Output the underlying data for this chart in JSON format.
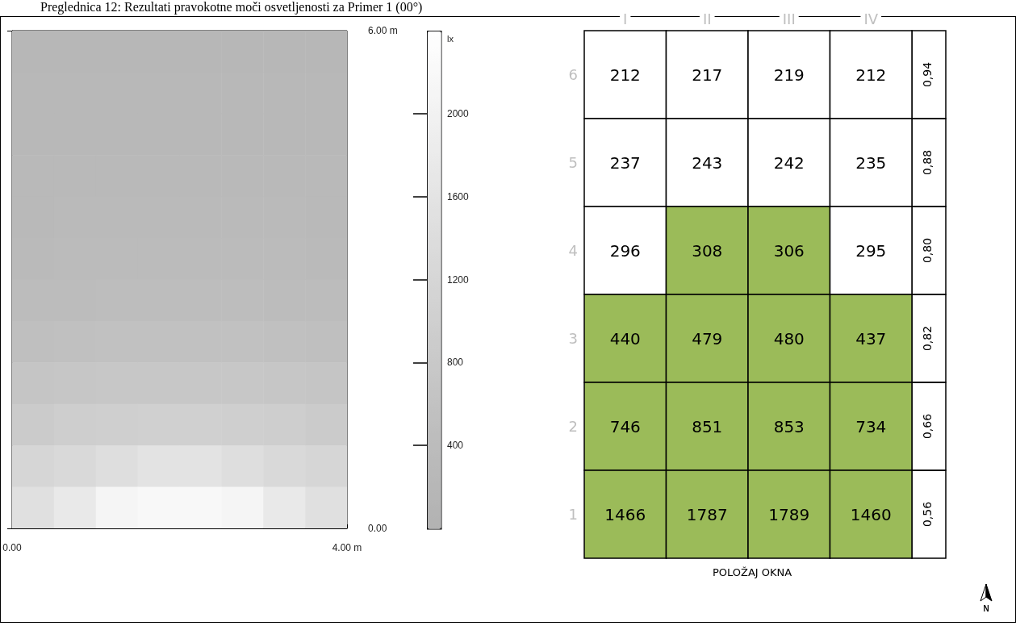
{
  "chart_data": [
    {
      "type": "heatmap",
      "title": "Preglednica 12: Rezultati pravokotne moči osvetljenosti za Primer 1 (00°)",
      "clabel": "lx",
      "xlim": [
        0,
        4
      ],
      "xticks": [
        {
          "value": 0,
          "label": "0.00"
        },
        {
          "value": 4,
          "label": "4.00 m"
        }
      ],
      "ylim": [
        0,
        6
      ],
      "yticks": [
        {
          "value": 0,
          "label": "0.00"
        },
        {
          "value": 6,
          "label": "6.00 m"
        }
      ],
      "clim": [
        0,
        2400
      ],
      "cticks": [
        400,
        800,
        1200,
        1600,
        2000
      ],
      "colors": [
        "#b2b2b2",
        "#bebebe",
        "#cecece",
        "#dedede",
        "#efefef",
        "#ffffff"
      ],
      "cells": [
        [
          205,
          210,
          212,
          214,
          214,
          212,
          210,
          205
        ],
        [
          225,
          232,
          236,
          238,
          238,
          236,
          232,
          225
        ],
        [
          245,
          252,
          256,
          258,
          258,
          256,
          252,
          245
        ],
        [
          265,
          275,
          280,
          282,
          282,
          280,
          275,
          265
        ],
        [
          290,
          305,
          310,
          312,
          312,
          310,
          305,
          290
        ],
        [
          330,
          345,
          350,
          352,
          352,
          350,
          345,
          330
        ],
        [
          390,
          410,
          420,
          425,
          425,
          420,
          410,
          390
        ],
        [
          520,
          545,
          560,
          565,
          565,
          560,
          545,
          520
        ],
        [
          700,
          730,
          750,
          760,
          760,
          750,
          730,
          700
        ],
        [
          880,
          950,
          1000,
          1020,
          1020,
          1000,
          950,
          880
        ],
        [
          1190,
          1300,
          1450,
          1580,
          1580,
          1450,
          1300,
          1190
        ],
        [
          1500,
          1750,
          2100,
          2200,
          2200,
          2100,
          1750,
          1500
        ]
      ]
    },
    {
      "type": "heatmap",
      "xlabel": "POLOŽAJ OKNA",
      "annotations": [
        "N"
      ],
      "data_labels": true,
      "categories": [
        "I",
        "II",
        "III",
        "IV"
      ],
      "y_categories": [
        "6",
        "5",
        "4",
        "3",
        "2",
        "1"
      ],
      "y2_categories": [
        "0,94",
        "0,88",
        "0,80",
        "0,82",
        "0,66",
        "0,56"
      ],
      "cells": [
        [
          212,
          217,
          219,
          212
        ],
        [
          237,
          243,
          242,
          235
        ],
        [
          296,
          308,
          306,
          295
        ],
        [
          440,
          479,
          480,
          437
        ],
        [
          746,
          851,
          853,
          734
        ],
        [
          1466,
          1787,
          1789,
          1460
        ]
      ],
      "colors": [
        [
          "#ffffff",
          "#ffffff",
          "#ffffff",
          "#ffffff"
        ],
        [
          "#ffffff",
          "#ffffff",
          "#ffffff",
          "#ffffff"
        ],
        [
          "#ffffff",
          "#9bbb59",
          "#9bbb59",
          "#ffffff"
        ],
        [
          "#9bbb59",
          "#9bbb59",
          "#9bbb59",
          "#9bbb59"
        ],
        [
          "#9bbb59",
          "#9bbb59",
          "#9bbb59",
          "#9bbb59"
        ],
        [
          "#9bbb59",
          "#9bbb59",
          "#9bbb59",
          "#9bbb59"
        ]
      ]
    }
  ]
}
